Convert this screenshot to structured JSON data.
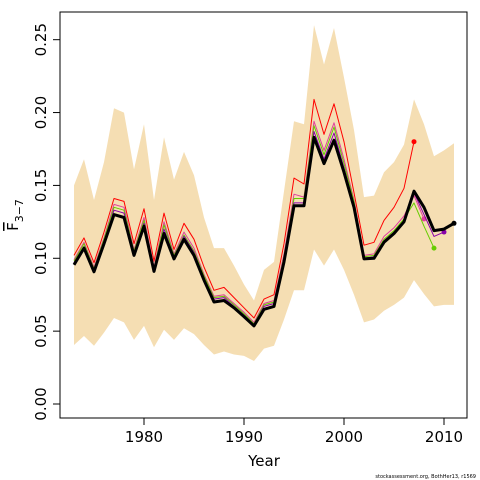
{
  "chart_data": {
    "type": "line",
    "x_label": "Year",
    "y_label": "F",
    "y_label_sub": "3−7",
    "footnote": "stockassessment.org, BothHer13, r1569",
    "x": [
      1973,
      1974,
      1975,
      1976,
      1977,
      1978,
      1979,
      1980,
      1981,
      1982,
      1983,
      1984,
      1985,
      1986,
      1987,
      1988,
      1989,
      1990,
      1991,
      1992,
      1993,
      1994,
      1995,
      1996,
      1997,
      1998,
      1999,
      2000,
      2001,
      2002,
      2003,
      2004,
      2005,
      2006,
      2007,
      2008,
      2009,
      2010,
      2011
    ],
    "band": {
      "color": "#f5deb3",
      "upper": [
        0.15,
        0.168,
        0.14,
        0.166,
        0.203,
        0.2,
        0.161,
        0.192,
        0.14,
        0.183,
        0.154,
        0.173,
        0.157,
        0.128,
        0.107,
        0.107,
        0.095,
        0.082,
        0.071,
        0.092,
        0.0975,
        0.146,
        0.194,
        0.192,
        0.26,
        0.233,
        0.258,
        0.224,
        0.188,
        0.142,
        0.143,
        0.159,
        0.166,
        0.178,
        0.209,
        0.192,
        0.17,
        0.174,
        0.179
      ],
      "lower": [
        0.0405,
        0.0467,
        0.04,
        0.049,
        0.059,
        0.056,
        0.044,
        0.0536,
        0.039,
        0.051,
        0.044,
        0.052,
        0.048,
        0.0405,
        0.034,
        0.036,
        0.034,
        0.033,
        0.0295,
        0.038,
        0.04,
        0.058,
        0.078,
        0.078,
        0.106,
        0.095,
        0.106,
        0.092,
        0.075,
        0.056,
        0.058,
        0.064,
        0.068,
        0.073,
        0.085,
        0.0755,
        0.067,
        0.068,
        0.068
      ]
    },
    "series": [
      {
        "color": "#ff0000",
        "width": 1,
        "values": [
          0.102,
          0.114,
          0.097,
          0.118,
          0.141,
          0.139,
          0.11,
          0.134,
          0.098,
          0.131,
          0.106,
          0.124,
          0.113,
          0.094,
          0.078,
          0.08,
          0.073,
          0.066,
          0.059,
          0.072,
          0.075,
          0.11,
          0.155,
          0.151,
          0.209,
          0.185,
          0.206,
          0.18,
          0.145,
          0.109,
          0.111,
          0.126,
          0.135,
          0.148,
          0.18,
          null,
          null,
          null,
          null
        ]
      },
      {
        "color": "#e0409c",
        "width": 1,
        "values": [
          0.099,
          0.111,
          0.094,
          0.114,
          0.137,
          0.135,
          0.106,
          0.128,
          0.094,
          0.125,
          0.103,
          0.118,
          0.107,
          0.089,
          0.074,
          0.075,
          0.069,
          0.063,
          0.056,
          0.069,
          0.071,
          0.103,
          0.144,
          0.142,
          0.194,
          0.174,
          0.193,
          0.168,
          0.14,
          0.102,
          0.103,
          0.115,
          0.121,
          0.129,
          0.143,
          0.127,
          null,
          null,
          null
        ]
      },
      {
        "color": "#66cc00",
        "width": 1,
        "values": [
          0.098,
          0.11,
          0.093,
          0.113,
          0.135,
          0.133,
          0.105,
          0.126,
          0.093,
          0.123,
          0.102,
          0.116,
          0.105,
          0.088,
          0.073,
          0.074,
          0.068,
          0.062,
          0.055,
          0.068,
          0.07,
          0.101,
          0.141,
          0.141,
          0.191,
          0.171,
          0.19,
          0.165,
          0.139,
          0.101,
          0.102,
          0.113,
          0.119,
          0.127,
          0.138,
          0.122,
          0.107,
          null,
          null
        ]
      },
      {
        "color": "#8800aa",
        "width": 1,
        "values": [
          0.097,
          0.108,
          0.092,
          0.111,
          0.133,
          0.131,
          0.103,
          0.124,
          0.092,
          0.12,
          0.101,
          0.115,
          0.104,
          0.086,
          0.072,
          0.073,
          0.067,
          0.061,
          0.054,
          0.067,
          0.069,
          0.099,
          0.138,
          0.138,
          0.187,
          0.168,
          0.186,
          0.162,
          0.137,
          0.1,
          0.101,
          0.112,
          0.118,
          0.126,
          0.145,
          0.13,
          0.115,
          0.118,
          null
        ]
      },
      {
        "color": "#000000",
        "width": 3,
        "values": [
          0.0955,
          0.107,
          0.0907,
          0.11,
          0.13,
          0.128,
          0.102,
          0.122,
          0.091,
          0.117,
          0.0996,
          0.113,
          0.102,
          0.085,
          0.07,
          0.071,
          0.066,
          0.06,
          0.0536,
          0.065,
          0.067,
          0.0975,
          0.136,
          0.136,
          0.183,
          0.165,
          0.181,
          0.159,
          0.135,
          0.0996,
          0.1,
          0.111,
          0.117,
          0.125,
          0.146,
          0.135,
          0.119,
          0.12,
          0.124
        ]
      }
    ],
    "xlim": [
      1971.6,
      2012.3
    ],
    "ylim": [
      -0.0096,
      0.269
    ],
    "xticks": [
      1980,
      1990,
      2000,
      2010
    ],
    "yticks": [
      {
        "value": 0,
        "label": "0.00"
      },
      {
        "value": 0.05,
        "label": "0.05"
      },
      {
        "value": 0.1,
        "label": "0.10"
      },
      {
        "value": 0.15,
        "label": "0.15"
      },
      {
        "value": 0.2,
        "label": "0.20"
      },
      {
        "value": 0.25,
        "label": "0.25"
      }
    ]
  }
}
